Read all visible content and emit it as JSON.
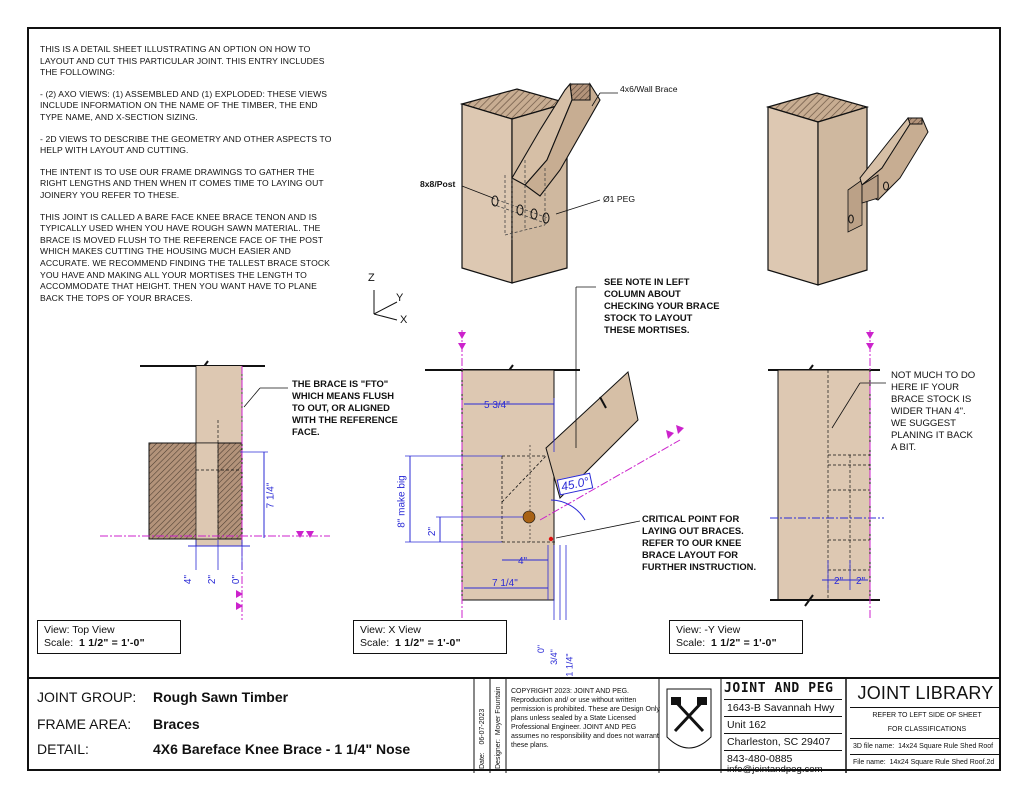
{
  "intro": [
    "THIS IS A DETAIL SHEET ILLUSTRATING AN OPTION ON HOW TO LAYOUT AND CUT THIS PARTICULAR JOINT. THIS ENTRY INCLUDES THE FOLLOWING:",
    "-  (2) AXO VIEWS: (1) ASSEMBLED AND (1) EXPLODED:  THESE VIEWS INCLUDE INFORMATION ON THE NAME OF THE TIMBER, THE END TYPE NAME, AND X-SECTION SIZING.",
    "-  2D VIEWS TO DESCRIBE THE GEOMETRY AND OTHER ASPECTS TO HELP WITH LAYOUT AND CUTTING.",
    "THE INTENT IS TO USE OUR FRAME DRAWINGS TO GATHER THE RIGHT LENGTHS AND THEN WHEN IT COMES TIME TO LAYING OUT JOINERY YOU REFER TO THESE.",
    "THIS JOINT IS CALLED A BARE FACE KNEE BRACE TENON AND IS TYPICALLY USED WHEN YOU HAVE ROUGH SAWN MATERIAL. THE BRACE IS MOVED FLUSH TO THE REFERENCE FACE OF THE POST WHICH MAKES CUTTING THE HOUSING MUCH EASIER AND ACCURATE.  WE RECOMMEND FINDING THE TALLEST BRACE STOCK YOU HAVE AND MAKING ALL YOUR MORTISES THE LENGTH TO ACCOMMODATE THAT HEIGHT.  THEN YOU WANT HAVE TO PLANE BACK THE TOPS OF YOUR BRACES."
  ],
  "axo": {
    "wall_brace": "4x6/Wall Brace",
    "post": "8x8/Post",
    "peg": "Ø1 PEG",
    "axis_z": "Z",
    "axis_y": "Y",
    "axis_x": "X"
  },
  "notes": {
    "see_note": "SEE NOTE IN LEFT\nCOLUMN ABOUT\nCHECKING YOUR BRACE\nSTOCK TO LAYOUT\nTHESE MORTISES.",
    "fto": "THE BRACE IS \"FTO\"\nWHICH MEANS FLUSH\nTO OUT, OR ALIGNED\nWITH THE REFERENCE\nFACE.",
    "critical": "CRITICAL POINT FOR\nLAYING OUT BRACES.\nREFER TO OUR KNEE\nBRACE LAYOUT FOR\nFURTHER INSTRUCTION.",
    "not_much": "NOT MUCH TO DO\nHERE IF YOUR\nBRACE STOCK IS\nWIDER THAN 4\".\nWE SUGGEST\nPLANING IT BACK\nA BIT."
  },
  "dims": {
    "top": {
      "h": "7 1/4\"",
      "a": "4\"",
      "b": "2\"",
      "c": "0\""
    },
    "x": {
      "w1": "5 3/4\"",
      "angle": "45.0°",
      "make_big": "8\" make big",
      "d2": "2\"",
      "d4": "4\"",
      "w2": "7 1/4\"",
      "b0": "0\"",
      "b34": "3/4\"",
      "b114": "1 1/4\""
    },
    "y": {
      "a": "2\"",
      "b": "2\""
    }
  },
  "views": [
    {
      "view": "View: Top View",
      "scale_label": "Scale:",
      "scale": "1 1/2\" = 1'-0\""
    },
    {
      "view": "View: X View",
      "scale_label": "Scale:",
      "scale": "1 1/2\" = 1'-0\""
    },
    {
      "view": "View: -Y View",
      "scale_label": "Scale:",
      "scale": "1 1/2\" = 1'-0\""
    }
  ],
  "titleblock": {
    "joint_group_key": "JOINT GROUP:",
    "joint_group": "Rough Sawn Timber",
    "frame_area_key": "FRAME AREA:",
    "frame_area": "Braces",
    "detail_key": "DETAIL:",
    "detail": "4X6 Bareface Knee Brace - 1 1/4\" Nose",
    "date_label": "Date:",
    "date": "06-07-2023",
    "designer_label": "Designer:",
    "designer": "Moyer Fountain",
    "copyright": "COPYRIGHT 2023: JOINT AND PEG. Reproduction and/ or use without written permission is prohibited.  These are Design Only plans unless sealed by a State Licensed Professional Engineer.  JOINT AND PEG assumes no responsibility and does not warrant these plans.",
    "company": "JOINT AND PEG",
    "address1": "1643-B Savannah Hwy",
    "address2": "Unit 162",
    "address3": "Charleston, SC 29407",
    "phone": "843-480-0885",
    "email": "info@jointandpeg.com",
    "library": "JOINT LIBRARY",
    "refer1": "REFER TO LEFT SIDE OF SHEET",
    "refer2": "FOR CLASSIFICATIONS",
    "file3d_label": "3D file name:",
    "file3d": "14x24 Square Rule Shed Roof",
    "file_label": "File  name:",
    "file": "14x24 Square Rule Shed Roof.2d"
  },
  "colors": {
    "wood": "#d9c4ae",
    "dim": "#2b2bd6",
    "ref": "#cc22cc",
    "peg": "#a86214"
  }
}
